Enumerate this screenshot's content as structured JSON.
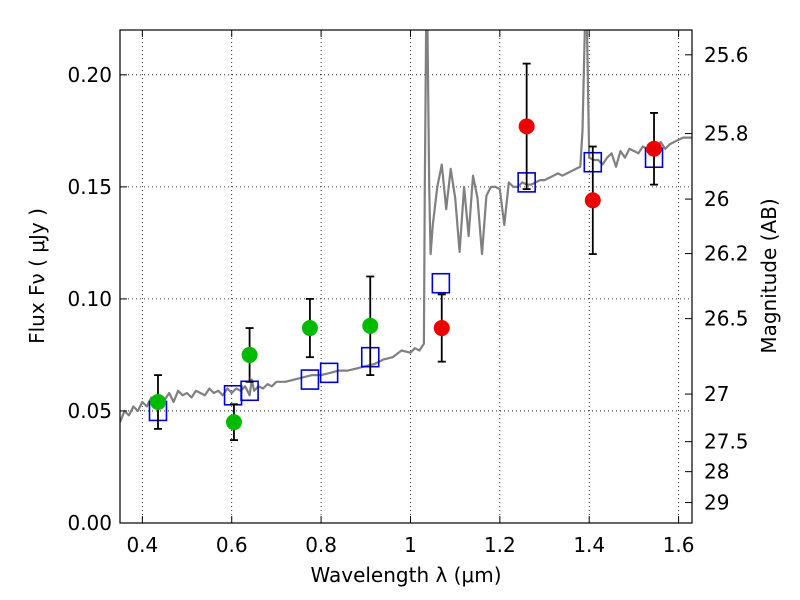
{
  "chart_data": {
    "type": "scatter",
    "xlabel": "Wavelength  λ (μm)",
    "ylabel": "Flux  Fν  ( μJy )",
    "ylabel_right": "Magnitude (AB)",
    "xlim": [
      0.35,
      1.63
    ],
    "ylim": [
      0.0,
      0.22
    ],
    "grid": true,
    "x_ticks": [
      0.4,
      0.6,
      0.8,
      1.0,
      1.2,
      1.4,
      1.6
    ],
    "x_tick_labels": [
      "0.4",
      "0.6",
      "0.8",
      "1",
      "1.2",
      "1.4",
      "1.6"
    ],
    "y_ticks": [
      0.0,
      0.05,
      0.1,
      0.15,
      0.2
    ],
    "y_tick_labels": [
      "0.00",
      "0.05",
      "0.10",
      "0.15",
      "0.20"
    ],
    "mag_ticks": [
      "25.6",
      "25.8",
      "26",
      "26.2",
      "26.5",
      "27",
      "27.5",
      "28",
      "29"
    ],
    "series": [
      {
        "type": "line",
        "color": "#808080",
        "x": [
          0.35,
          0.36,
          0.37,
          0.38,
          0.39,
          0.4,
          0.41,
          0.42,
          0.43,
          0.44,
          0.45,
          0.46,
          0.47,
          0.48,
          0.49,
          0.5,
          0.51,
          0.52,
          0.53,
          0.54,
          0.55,
          0.56,
          0.57,
          0.58,
          0.59,
          0.6,
          0.61,
          0.62,
          0.63,
          0.64,
          0.645,
          0.65,
          0.66,
          0.67,
          0.68,
          0.69,
          0.7,
          0.72,
          0.74,
          0.76,
          0.78,
          0.8,
          0.82,
          0.84,
          0.86,
          0.88,
          0.9,
          0.92,
          0.94,
          0.96,
          0.98,
          1.0,
          1.01,
          1.02,
          1.03,
          1.032,
          1.035,
          1.038,
          1.042,
          1.045,
          1.05,
          1.06,
          1.07,
          1.08,
          1.09,
          1.1,
          1.11,
          1.12,
          1.13,
          1.14,
          1.15,
          1.16,
          1.17,
          1.18,
          1.19,
          1.2,
          1.21,
          1.22,
          1.23,
          1.24,
          1.25,
          1.26,
          1.27,
          1.28,
          1.29,
          1.3,
          1.31,
          1.32,
          1.33,
          1.34,
          1.35,
          1.36,
          1.37,
          1.38,
          1.385,
          1.39,
          1.395,
          1.4,
          1.41,
          1.42,
          1.43,
          1.44,
          1.45,
          1.46,
          1.47,
          1.48,
          1.49,
          1.5,
          1.51,
          1.52,
          1.53,
          1.54,
          1.55,
          1.56,
          1.57,
          1.58,
          1.59,
          1.6,
          1.61,
          1.62,
          1.63
        ],
        "y": [
          0.045,
          0.05,
          0.048,
          0.052,
          0.05,
          0.054,
          0.052,
          0.056,
          0.053,
          0.057,
          0.055,
          0.058,
          0.054,
          0.059,
          0.057,
          0.058,
          0.056,
          0.059,
          0.058,
          0.057,
          0.06,
          0.058,
          0.059,
          0.057,
          0.06,
          0.058,
          0.06,
          0.059,
          0.061,
          0.057,
          0.064,
          0.059,
          0.061,
          0.06,
          0.062,
          0.061,
          0.063,
          0.063,
          0.064,
          0.065,
          0.066,
          0.066,
          0.067,
          0.068,
          0.068,
          0.069,
          0.07,
          0.071,
          0.073,
          0.074,
          0.077,
          0.076,
          0.078,
          0.077,
          0.08,
          0.15,
          0.22,
          0.22,
          0.15,
          0.12,
          0.133,
          0.15,
          0.16,
          0.14,
          0.158,
          0.145,
          0.121,
          0.15,
          0.128,
          0.155,
          0.145,
          0.12,
          0.146,
          0.15,
          0.15,
          0.149,
          0.133,
          0.152,
          0.15,
          0.15,
          0.152,
          0.151,
          0.151,
          0.152,
          0.153,
          0.153,
          0.154,
          0.155,
          0.156,
          0.155,
          0.156,
          0.157,
          0.158,
          0.159,
          0.175,
          0.22,
          0.22,
          0.163,
          0.162,
          0.162,
          0.16,
          0.163,
          0.165,
          0.159,
          0.166,
          0.163,
          0.167,
          0.166,
          0.165,
          0.168,
          0.167,
          0.169,
          0.167,
          0.17,
          0.167,
          0.169,
          0.17,
          0.171,
          0.172,
          0.172,
          0.172
        ]
      },
      {
        "type": "open-square",
        "color": "#0000cc",
        "x": [
          0.435,
          0.603,
          0.64,
          0.775,
          0.818,
          0.91,
          1.068,
          1.26,
          1.408,
          1.545
        ],
        "y": [
          0.05,
          0.057,
          0.059,
          0.064,
          0.067,
          0.074,
          0.107,
          0.152,
          0.161,
          0.163
        ]
      },
      {
        "type": "circle",
        "color": "#00bb00",
        "x": [
          0.435,
          0.605,
          0.64,
          0.775,
          0.91
        ],
        "y": [
          0.054,
          0.045,
          0.075,
          0.087,
          0.088
        ],
        "yerr": [
          0.012,
          0.008,
          0.012,
          0.013,
          0.022
        ]
      },
      {
        "type": "circle",
        "color": "#ee0000",
        "x": [
          1.07,
          1.26,
          1.408,
          1.545
        ],
        "y": [
          0.087,
          0.177,
          0.144,
          0.167
        ],
        "yerr": [
          0.015,
          0.028,
          0.024,
          0.016
        ]
      }
    ]
  }
}
